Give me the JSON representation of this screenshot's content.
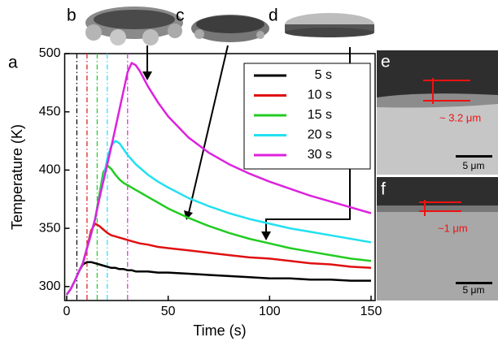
{
  "chart_data": {
    "type": "line",
    "x_label": "Time (s)",
    "y_label": "Temperature (K)",
    "xlim": [
      -1,
      152
    ],
    "ylim": [
      288,
      500
    ],
    "xticks": [
      0,
      50,
      100,
      150
    ],
    "yticks": [
      300,
      350,
      400,
      450,
      500
    ],
    "x": [
      0,
      2,
      4,
      6,
      8,
      10,
      12,
      14,
      16,
      18,
      20,
      22,
      24,
      26,
      28,
      30,
      32,
      34,
      36,
      40,
      45,
      50,
      60,
      70,
      80,
      90,
      100,
      110,
      120,
      130,
      140,
      150
    ],
    "series": [
      {
        "name": "5 s",
        "color": "#000000",
        "vline": 5,
        "values": [
          293,
          298,
          305,
          313,
          319,
          321,
          321,
          320,
          319,
          318,
          317,
          316,
          316,
          315,
          315,
          314,
          314,
          313,
          313,
          313,
          312,
          312,
          311,
          310,
          309,
          308,
          307,
          307,
          306,
          306,
          305,
          305
        ]
      },
      {
        "name": "10 s",
        "color": "#e01010",
        "vline": 10,
        "values": [
          293,
          298,
          305,
          313,
          320,
          333,
          348,
          354,
          352,
          349,
          346,
          344,
          343,
          342,
          341,
          340,
          339,
          338,
          337,
          336,
          334,
          333,
          331,
          329,
          327,
          325,
          324,
          322,
          320,
          319,
          317,
          316
        ]
      },
      {
        "name": "15 s",
        "color": "#22cc22",
        "vline": 15,
        "values": [
          293,
          298,
          305,
          313,
          320,
          333,
          345,
          358,
          378,
          398,
          404,
          401,
          396,
          392,
          389,
          387,
          385,
          383,
          381,
          377,
          372,
          367,
          359,
          352,
          346,
          341,
          337,
          333,
          330,
          327,
          324,
          322
        ]
      },
      {
        "name": "20 s",
        "color": "#22e0f0",
        "vline": 20,
        "values": [
          293,
          298,
          305,
          313,
          320,
          333,
          345,
          358,
          375,
          392,
          410,
          421,
          425,
          423,
          418,
          413,
          409,
          405,
          402,
          396,
          390,
          385,
          376,
          369,
          363,
          358,
          354,
          350,
          347,
          344,
          341,
          338
        ]
      },
      {
        "name": "30 s",
        "color": "#dd22dd",
        "vline": 30,
        "values": [
          293,
          298,
          305,
          313,
          320,
          333,
          345,
          358,
          375,
          390,
          405,
          420,
          436,
          452,
          468,
          484,
          492,
          490,
          485,
          472,
          458,
          446,
          428,
          415,
          405,
          397,
          390,
          384,
          378,
          373,
          368,
          363
        ]
      }
    ],
    "panel_labels": [
      "a",
      "b",
      "c",
      "d",
      "e",
      "f"
    ],
    "annotations": [
      "~ 3.2 μm",
      "~1 μm"
    ],
    "scale_bars": [
      "5 μm",
      "5 μm"
    ]
  }
}
